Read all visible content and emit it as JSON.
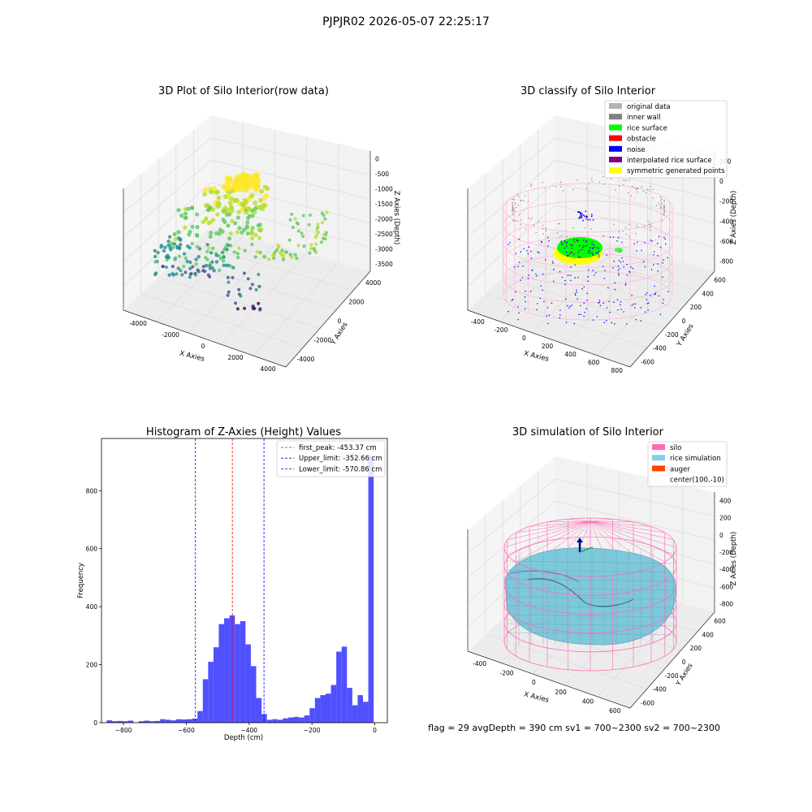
{
  "figure": {
    "suptitle": "PJPJR02 2026-05-07 22:25:17",
    "footer": "flag = 29  avgDepth = 390 cm  sv1 = 700~2300  sv2 = 700~2300"
  },
  "panels": {
    "raw": {
      "title": "3D Plot of Silo Interior(row data)",
      "xlabel": "X Axies",
      "ylabel": "Y Axies",
      "zlabel": "Z Axies (Depth)",
      "xticks": [
        "-4000",
        "-2000",
        "0",
        "2000",
        "4000"
      ],
      "yticks": [
        "4000",
        "2000",
        "0",
        "-2000",
        "-4000"
      ],
      "zticks": [
        "0",
        "-500",
        "-1000",
        "-1500",
        "-2000",
        "-2500",
        "-3000",
        "-3500"
      ]
    },
    "classify": {
      "title": "3D classify of Silo Interior",
      "xlabel": "X Axies",
      "ylabel": "Y Axies",
      "zlabel": "Z Axies (Depth)",
      "xticks": [
        "-400",
        "-200",
        "0",
        "200",
        "400",
        "600",
        "800"
      ],
      "yticks": [
        "600",
        "400",
        "200",
        "0",
        "-200",
        "-400",
        "-600"
      ],
      "zticks": [
        "200",
        "0",
        "-200",
        "-400",
        "-600",
        "-800"
      ],
      "legend": [
        {
          "label": "original data",
          "color": "#b3b3b3"
        },
        {
          "label": "inner wall",
          "color": "#808080"
        },
        {
          "label": "rice surface",
          "color": "#00ff00"
        },
        {
          "label": "obstacle",
          "color": "#ff0000"
        },
        {
          "label": "noise",
          "color": "#0000ff"
        },
        {
          "label": "interpolated rice surface",
          "color": "#800080"
        },
        {
          "label": "symmetric generated points",
          "color": "#ffff00"
        }
      ]
    },
    "histogram": {
      "title": "Histogram of Z-Axies (Height) Values",
      "xlabel": "Depth (cm)",
      "ylabel": "Frequency",
      "legend": [
        {
          "label": "first_peak: -453.37 cm",
          "color": "#ff0000"
        },
        {
          "label": "Upper_limit: -352.66 cm",
          "color": "#0000ff"
        },
        {
          "label": "Lower_limit: -570.86 cm",
          "color": "#0000ff"
        }
      ]
    },
    "simulation": {
      "title": "3D simulation of Silo Interior",
      "xlabel": "X Axies",
      "ylabel": "Y Axies",
      "zlabel": "Z Axies (Depth)",
      "xticks": [
        "-400",
        "-200",
        "0",
        "200",
        "400",
        "600"
      ],
      "yticks": [
        "600",
        "400",
        "200",
        "0",
        "-200",
        "-400",
        "-600"
      ],
      "zticks": [
        "400",
        "200",
        "0",
        "-200",
        "-400",
        "-600",
        "-800"
      ],
      "legend": [
        {
          "label": "silo",
          "color": "#ff69b4"
        },
        {
          "label": "rice simulation",
          "color": "#87ceeb"
        },
        {
          "label": "auger",
          "color": "#ff4500"
        },
        {
          "label": "center(100,-10)",
          "color": ""
        }
      ]
    }
  },
  "chart_data": {
    "type": "bar",
    "title": "Histogram of Z-Axies (Height) Values",
    "xlabel": "Depth (cm)",
    "ylabel": "Frequency",
    "xlim": [
      -870,
      40
    ],
    "ylim": [
      0,
      980
    ],
    "xticks": [
      -800,
      -600,
      -400,
      -200,
      0
    ],
    "yticks": [
      0,
      200,
      400,
      600,
      800
    ],
    "bar_color": "#5050ff",
    "bin_width": 17,
    "bins": [
      {
        "x": -845,
        "count": 8
      },
      {
        "x": -828,
        "count": 5
      },
      {
        "x": -811,
        "count": 6
      },
      {
        "x": -794,
        "count": 5
      },
      {
        "x": -777,
        "count": 7
      },
      {
        "x": -760,
        "count": 0
      },
      {
        "x": -743,
        "count": 5
      },
      {
        "x": -726,
        "count": 7
      },
      {
        "x": -709,
        "count": 5
      },
      {
        "x": -692,
        "count": 6
      },
      {
        "x": -675,
        "count": 12
      },
      {
        "x": -658,
        "count": 10
      },
      {
        "x": -641,
        "count": 8
      },
      {
        "x": -624,
        "count": 12
      },
      {
        "x": -607,
        "count": 11
      },
      {
        "x": -590,
        "count": 12
      },
      {
        "x": -573,
        "count": 14
      },
      {
        "x": -556,
        "count": 40
      },
      {
        "x": -539,
        "count": 150
      },
      {
        "x": -522,
        "count": 210
      },
      {
        "x": -505,
        "count": 260
      },
      {
        "x": -488,
        "count": 340
      },
      {
        "x": -471,
        "count": 360
      },
      {
        "x": -454,
        "count": 370
      },
      {
        "x": -437,
        "count": 340
      },
      {
        "x": -420,
        "count": 350
      },
      {
        "x": -403,
        "count": 270
      },
      {
        "x": -386,
        "count": 195
      },
      {
        "x": -369,
        "count": 85
      },
      {
        "x": -352,
        "count": 30
      },
      {
        "x": -335,
        "count": 10
      },
      {
        "x": -318,
        "count": 12
      },
      {
        "x": -301,
        "count": 10
      },
      {
        "x": -284,
        "count": 15
      },
      {
        "x": -267,
        "count": 18
      },
      {
        "x": -250,
        "count": 20
      },
      {
        "x": -233,
        "count": 18
      },
      {
        "x": -216,
        "count": 25
      },
      {
        "x": -199,
        "count": 50
      },
      {
        "x": -182,
        "count": 85
      },
      {
        "x": -165,
        "count": 95
      },
      {
        "x": -148,
        "count": 100
      },
      {
        "x": -131,
        "count": 130
      },
      {
        "x": -114,
        "count": 245
      },
      {
        "x": -97,
        "count": 262
      },
      {
        "x": -80,
        "count": 120
      },
      {
        "x": -63,
        "count": 60
      },
      {
        "x": -46,
        "count": 95
      },
      {
        "x": -29,
        "count": 72
      },
      {
        "x": -12,
        "count": 920
      }
    ],
    "vlines": [
      {
        "x": -453.37,
        "color": "#ff0000"
      },
      {
        "x": -352.66,
        "color": "#0000ff"
      },
      {
        "x": -570.86,
        "color": "#0000ff"
      }
    ]
  }
}
